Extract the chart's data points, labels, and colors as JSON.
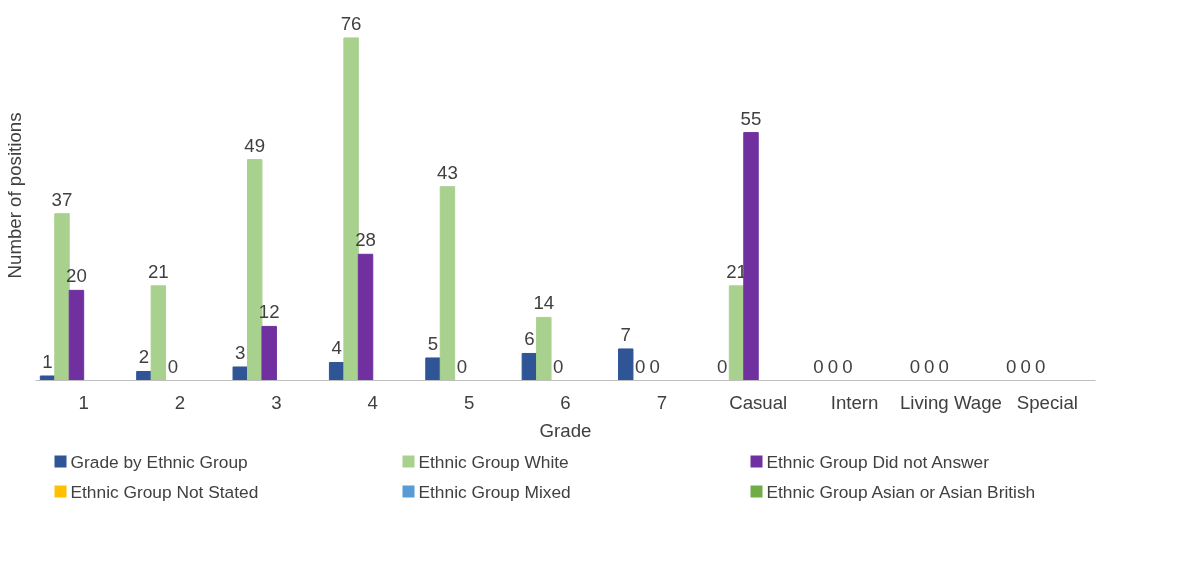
{
  "chart_data": {
    "type": "bar",
    "xlabel": "Grade",
    "ylabel": "Number of positions",
    "categories": [
      "1",
      "2",
      "3",
      "4",
      "5",
      "6",
      "7",
      "Casual",
      "Intern",
      "Living Wage",
      "Special"
    ],
    "series": [
      {
        "name": "Grade by Ethnic Group",
        "color": "#2f5597",
        "values": [
          1,
          2,
          3,
          4,
          5,
          6,
          7,
          0,
          0,
          0,
          0
        ]
      },
      {
        "name": "Ethnic Group White",
        "color": "#a9d18e",
        "values": [
          37,
          21,
          49,
          76,
          43,
          14,
          0,
          21,
          0,
          0,
          0
        ]
      },
      {
        "name": "Ethnic Group Did not Answer",
        "color": "#7030a0",
        "values": [
          20,
          0,
          12,
          28,
          0,
          0,
          0,
          55,
          0,
          0,
          0
        ]
      },
      {
        "name": "Ethnic Group Not Stated",
        "color": "#ffc000",
        "values": [
          null,
          null,
          null,
          null,
          null,
          null,
          null,
          null,
          null,
          null,
          null
        ]
      },
      {
        "name": "Ethnic Group Mixed",
        "color": "#5b9bd5",
        "values": [
          null,
          null,
          null,
          null,
          null,
          null,
          null,
          null,
          null,
          null,
          null
        ]
      },
      {
        "name": "Ethnic Group Asian or Asian British",
        "color": "#70ad47",
        "values": [
          null,
          null,
          null,
          null,
          null,
          null,
          null,
          null,
          null,
          null,
          null
        ]
      }
    ],
    "data_labels": true,
    "grid": false,
    "legend": "bottom"
  }
}
